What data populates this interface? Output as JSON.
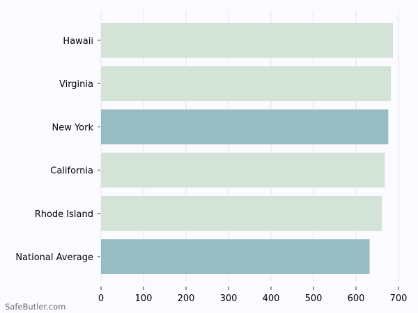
{
  "chart_data": {
    "type": "bar",
    "orientation": "horizontal",
    "categories": [
      "Hawaii",
      "Virginia",
      "New York",
      "California",
      "Rhode Island",
      "National Average"
    ],
    "values": [
      687,
      682,
      676,
      668,
      661,
      632
    ],
    "highlight": [
      false,
      false,
      true,
      false,
      false,
      true
    ],
    "colors": {
      "default": "#d4e3d8",
      "highlight": "#97bcc4"
    },
    "xticks": [
      0,
      100,
      200,
      300,
      400,
      500,
      600,
      700
    ],
    "xlim": [
      0,
      700
    ],
    "grid": true,
    "title": "",
    "xlabel": "",
    "ylabel": ""
  },
  "watermark": "SafeButler.com"
}
